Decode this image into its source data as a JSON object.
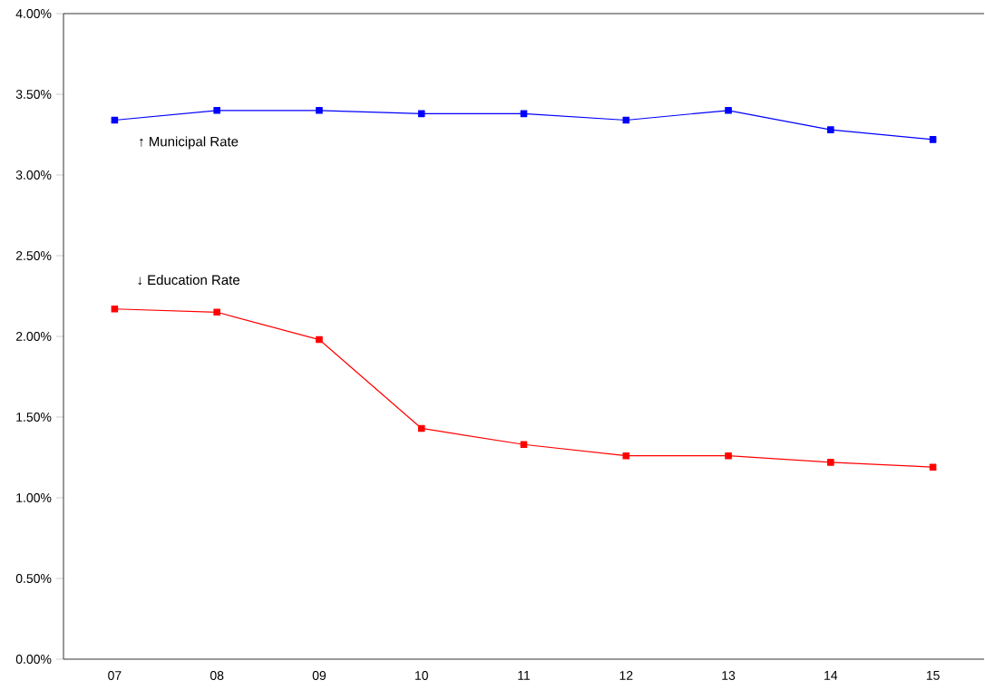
{
  "chart_data": {
    "type": "line",
    "categories": [
      "07",
      "08",
      "09",
      "10",
      "11",
      "12",
      "13",
      "14",
      "15"
    ],
    "series": [
      {
        "color": "#0000ff",
        "values": [
          3.34,
          3.4,
          3.4,
          3.38,
          3.38,
          3.34,
          3.4,
          3.28,
          3.22
        ]
      },
      {
        "color": "#ff0000",
        "values": [
          2.17,
          2.15,
          1.98,
          1.43,
          1.33,
          1.26,
          1.26,
          1.22,
          1.19
        ]
      }
    ],
    "ylim": [
      0,
      4
    ],
    "yticks": [
      {
        "value": 0,
        "label": "0.00%"
      },
      {
        "value": 0.5,
        "label": "0.50%"
      },
      {
        "value": 1,
        "label": "1.00%"
      },
      {
        "value": 1.5,
        "label": "1.50%"
      },
      {
        "value": 2,
        "label": "2.00%"
      },
      {
        "value": 2.5,
        "label": "2.50%"
      },
      {
        "value": 3,
        "label": "3.00%"
      },
      {
        "value": 3.5,
        "label": "3.50%"
      },
      {
        "value": 4,
        "label": "4.00%"
      }
    ],
    "annotations": [
      "↑ Municipal Rate",
      "↓ Education Rate"
    ],
    "grid": false,
    "legend": false,
    "marker": "square",
    "line_style": "solid"
  }
}
